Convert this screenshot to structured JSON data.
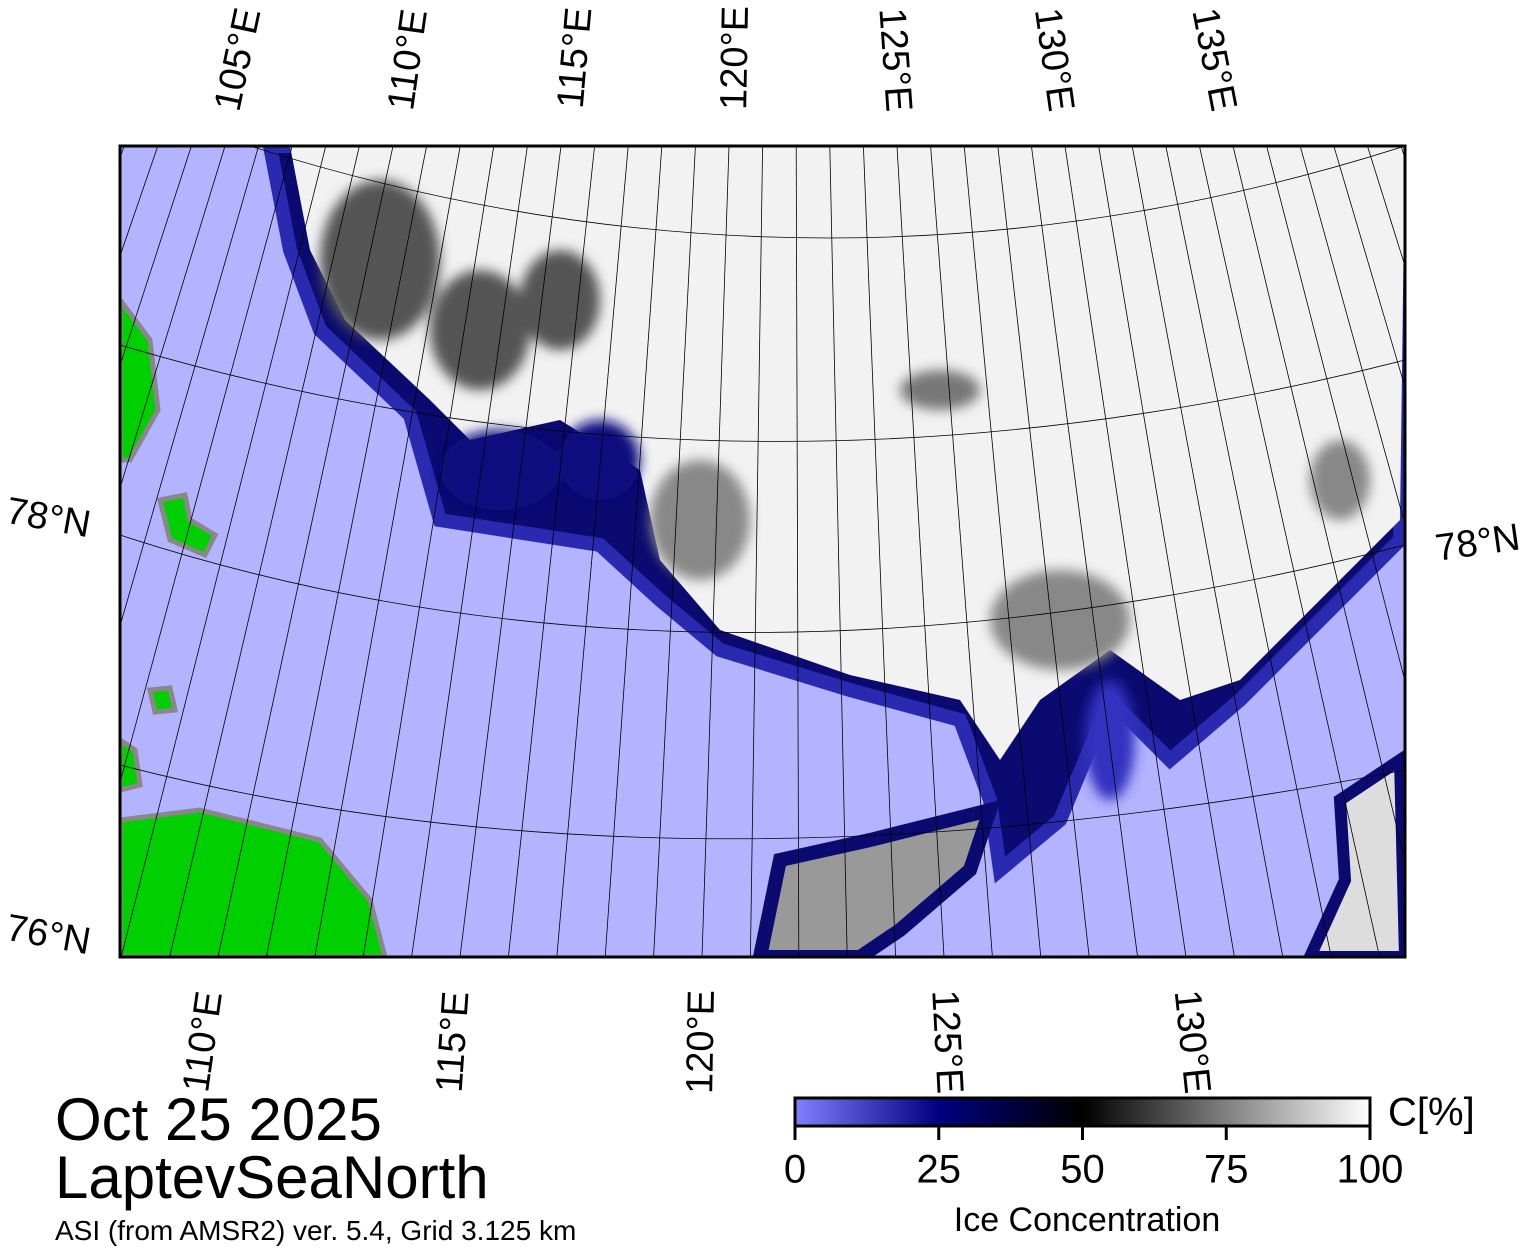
{
  "map": {
    "top_lon_labels": [
      "105°E",
      "110°E",
      "115°E",
      "120°E",
      "125°E",
      "130°E",
      "135°E"
    ],
    "bottom_lon_labels": [
      "110°E",
      "115°E",
      "120°E",
      "125°E",
      "130°E"
    ],
    "left_lat_labels": [
      "78°N",
      "76°N"
    ],
    "right_lat_labels": [
      "78°N"
    ]
  },
  "date": "Oct 25 2025",
  "region": "LaptevSeaNorth",
  "product": "ASI (from AMSR2) ver. 5.4,  Grid 3.125 km",
  "colorbar": {
    "label": "Ice Concentration",
    "unit": "C[%]",
    "range": [
      0,
      100
    ],
    "ticks": [
      0,
      25,
      50,
      75,
      100
    ]
  }
}
